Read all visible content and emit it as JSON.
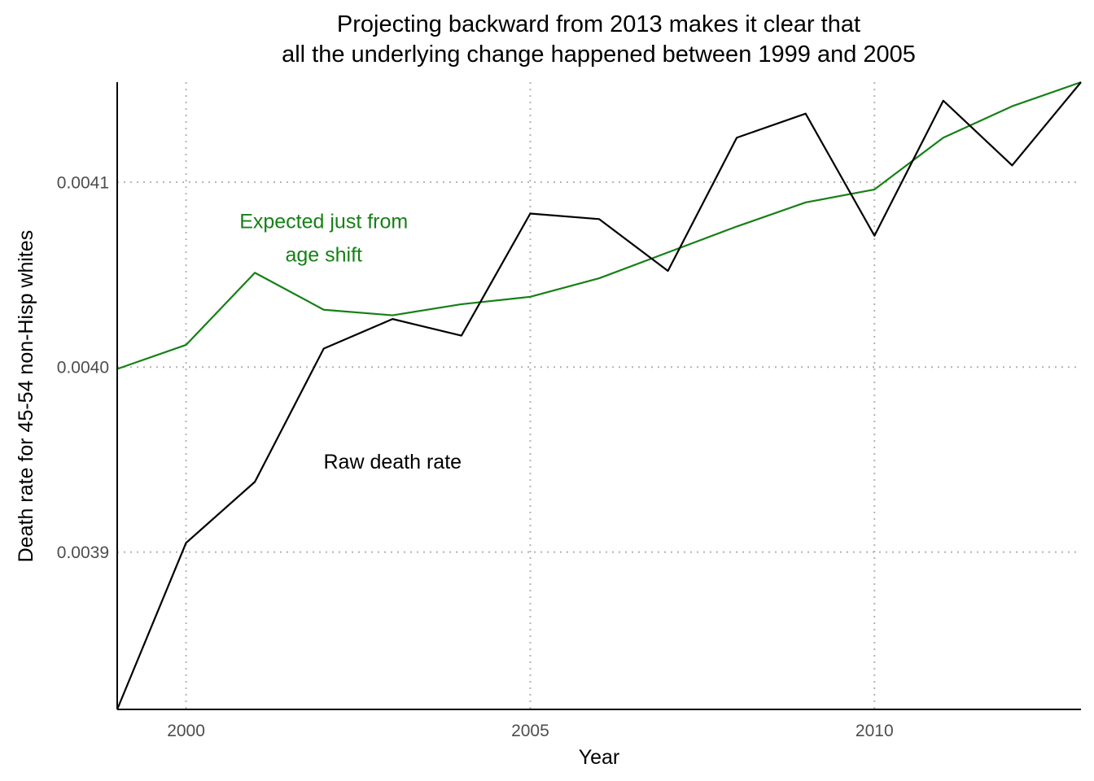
{
  "chart_data": {
    "type": "line",
    "title": [
      "Projecting backward from 2013 makes it clear that",
      "all the underlying change happened between 1999 and 2005"
    ],
    "xlabel": "Year",
    "ylabel": "Death rate for 45-54 non-Hisp whites",
    "xlim": [
      1999,
      2013
    ],
    "ylim": [
      0.003815,
      0.004154
    ],
    "x_ticks": [
      2000,
      2005,
      2010
    ],
    "x_tick_labels": [
      "2000",
      "2005",
      "2010"
    ],
    "y_ticks": [
      0.0039,
      0.004,
      0.0041
    ],
    "y_tick_labels": [
      "0.0039",
      "0.0040",
      "0.0041"
    ],
    "grid": "major, dotted",
    "legend": "none (direct labels)",
    "x": [
      1999,
      2000,
      2001,
      2002,
      2003,
      2004,
      2005,
      2006,
      2007,
      2008,
      2009,
      2010,
      2011,
      2012,
      2013
    ],
    "series": [
      {
        "name": "Raw death rate",
        "color": "#000000",
        "values": [
          0.003815,
          0.003905,
          0.003938,
          0.00401,
          0.004026,
          0.004017,
          0.004083,
          0.00408,
          0.004052,
          0.004124,
          0.004137,
          0.004071,
          0.004144,
          0.004109,
          0.004154
        ]
      },
      {
        "name": "Expected just from age shift",
        "color": "#168016",
        "values": [
          0.003999,
          0.004012,
          0.004051,
          0.004031,
          0.004028,
          0.004034,
          0.004038,
          0.004048,
          0.004062,
          0.004076,
          0.004089,
          0.004096,
          0.004124,
          0.004141,
          0.004154
        ]
      }
    ],
    "annotations": [
      {
        "text": [
          "Expected just from",
          "age shift"
        ],
        "color": "#168016",
        "x": 2002,
        "y": 0.00407
      },
      {
        "text": [
          "Raw death rate"
        ],
        "color": "#000000",
        "x": 2003,
        "y": 0.003949
      }
    ]
  }
}
